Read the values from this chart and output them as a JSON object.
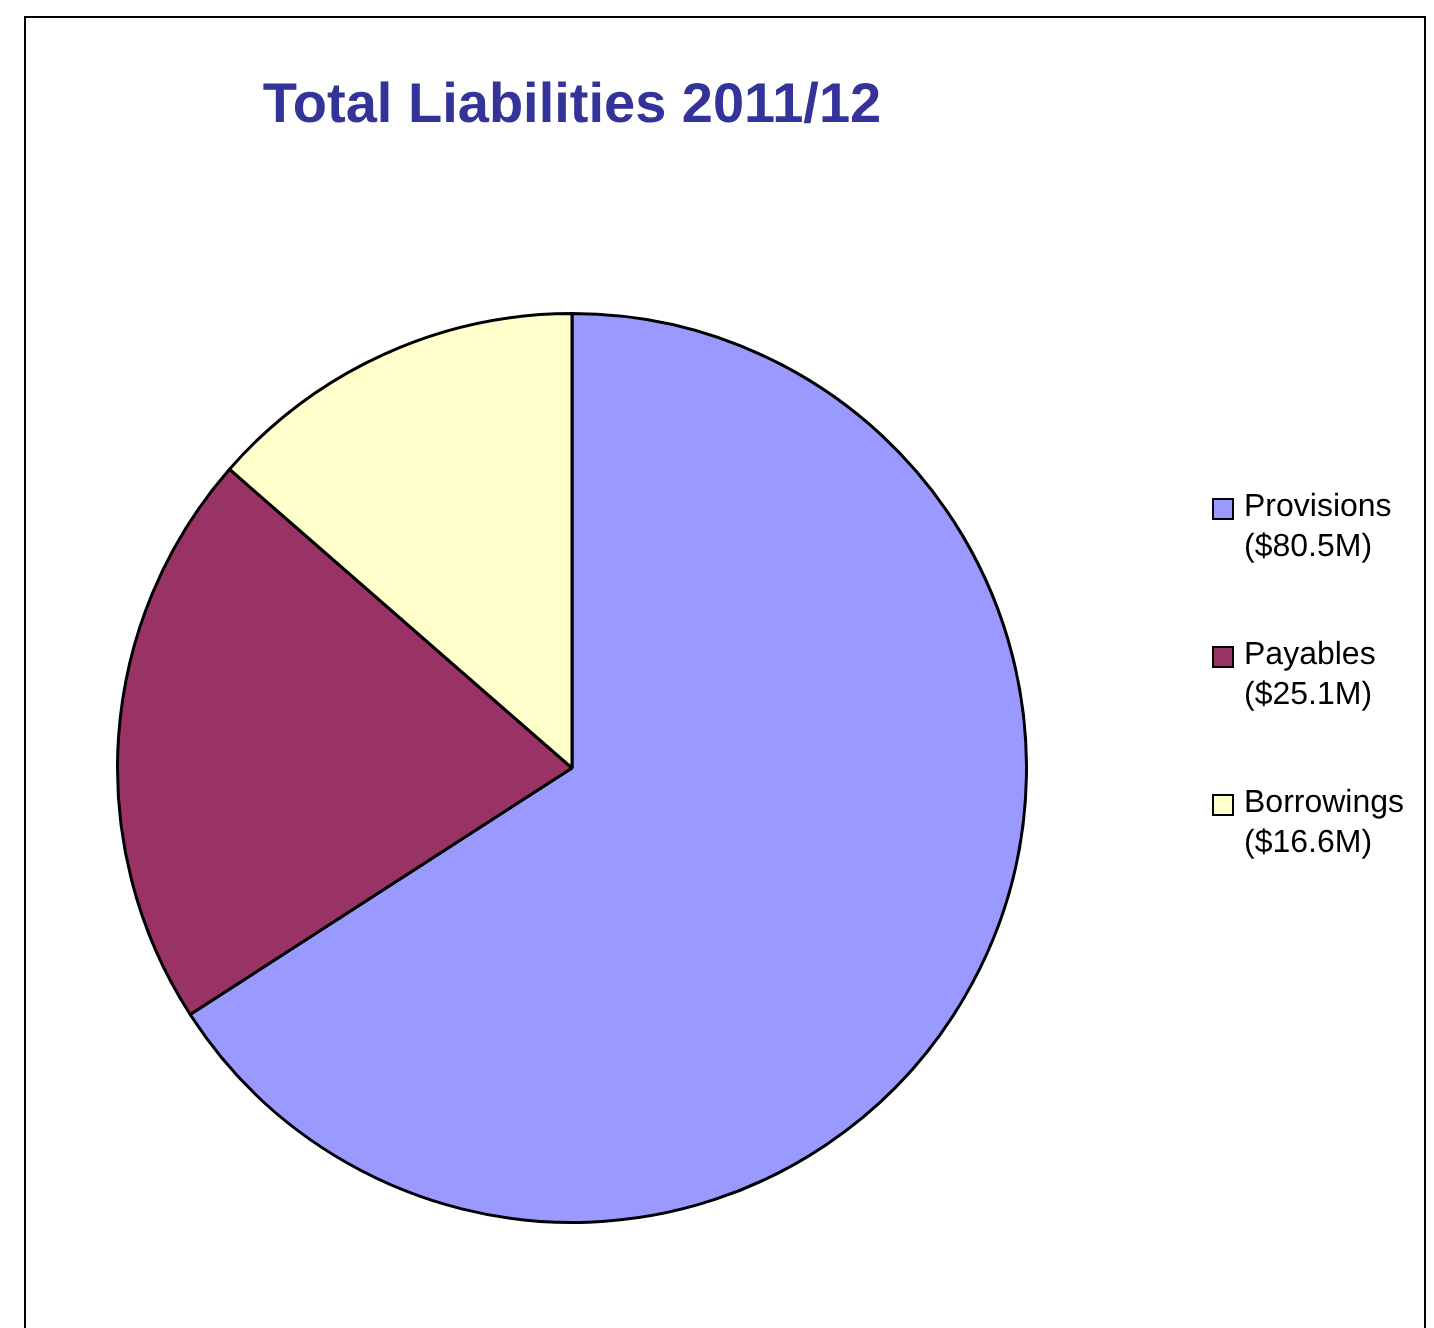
{
  "chart_data": {
    "type": "pie",
    "title": "Total Liabilities 2011/12",
    "categories": [
      "Provisions ($80.5M)",
      "Payables ($25.1M)",
      "Borrowings ($16.6M)"
    ],
    "values": [
      80.5,
      25.1,
      16.6
    ],
    "colors": [
      "#9999ff",
      "#993366",
      "#ffffcc"
    ],
    "legend": "right"
  }
}
